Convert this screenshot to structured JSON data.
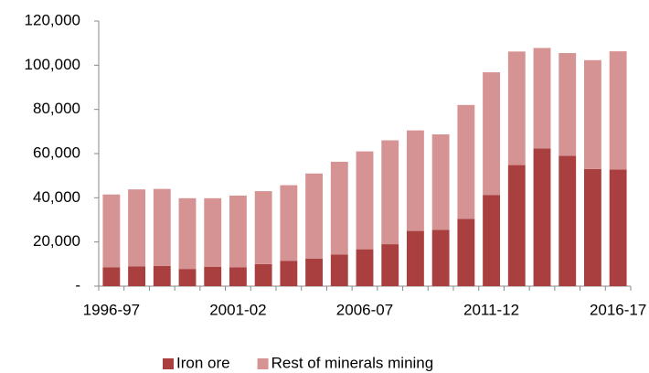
{
  "chart_data": {
    "type": "stacked_bar",
    "categories": [
      "1996-97",
      null,
      null,
      null,
      null,
      "2001-02",
      null,
      null,
      null,
      null,
      "2006-07",
      null,
      null,
      null,
      null,
      "2011-12",
      null,
      null,
      null,
      null,
      "2016-17"
    ],
    "series": [
      {
        "name": "Iron ore",
        "color": "#a9403f",
        "values": [
          8500,
          9000,
          9200,
          7800,
          8800,
          8500,
          10000,
          11500,
          12500,
          14300,
          16700,
          19000,
          25000,
          25500,
          30500,
          41300,
          54800,
          62300,
          59000,
          53000,
          52800
        ]
      },
      {
        "name": "Rest of minerals mining",
        "color": "#d59393",
        "values": [
          33000,
          34800,
          34800,
          32000,
          31000,
          32500,
          33000,
          34200,
          38500,
          42000,
          44300,
          47000,
          45500,
          43200,
          51500,
          55500,
          51400,
          45500,
          46500,
          49300,
          53500
        ]
      }
    ],
    "ylim": [
      0,
      120000
    ],
    "yticks": [
      {
        "value": 0,
        "label": "-"
      },
      {
        "value": 20000,
        "label": "20,000"
      },
      {
        "value": 40000,
        "label": "40,000"
      },
      {
        "value": 60000,
        "label": "60,000"
      },
      {
        "value": 80000,
        "label": "80,000"
      },
      {
        "value": 100000,
        "label": "100,000"
      },
      {
        "value": 120000,
        "label": "120,000"
      }
    ],
    "legend": "bottom"
  }
}
